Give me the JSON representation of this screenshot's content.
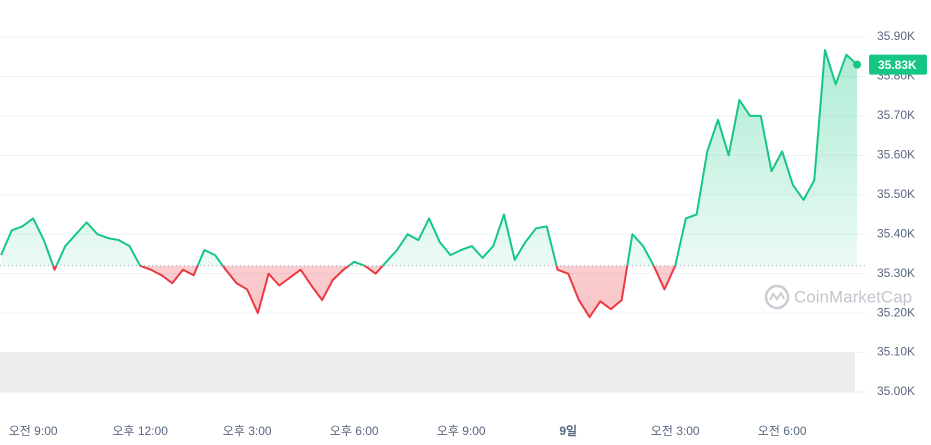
{
  "chart_data": {
    "type": "line",
    "x": [
      8.1,
      8.4,
      8.7,
      9.0,
      9.3,
      9.6,
      9.9,
      10.2,
      10.5,
      10.8,
      11.1,
      11.4,
      11.7,
      12.0,
      12.3,
      12.6,
      12.9,
      13.2,
      13.5,
      13.8,
      14.1,
      14.4,
      14.7,
      15.0,
      15.3,
      15.6,
      15.9,
      16.2,
      16.5,
      16.8,
      17.1,
      17.4,
      17.7,
      18.0,
      18.3,
      18.6,
      18.9,
      19.2,
      19.5,
      19.8,
      20.1,
      20.4,
      20.7,
      21.0,
      21.3,
      21.6,
      21.9,
      22.2,
      22.5,
      22.8,
      23.1,
      23.4,
      23.7,
      24.0,
      24.3,
      24.6,
      24.9,
      25.2,
      25.5,
      25.8,
      26.1,
      26.4,
      26.7,
      27.0,
      27.3,
      27.6,
      27.9,
      28.2,
      28.5,
      28.8,
      29.1,
      29.4,
      29.7,
      30.0,
      30.3,
      30.6,
      30.9,
      31.2,
      31.5,
      31.8,
      32.1
    ],
    "values": [
      35347,
      35410,
      35420,
      35440,
      35385,
      35310,
      35370,
      35400,
      35430,
      35400,
      35390,
      35385,
      35370,
      35320,
      35310,
      35296,
      35276,
      35310,
      35296,
      35360,
      35347,
      35310,
      35276,
      35260,
      35200,
      35300,
      35270,
      35290,
      35310,
      35270,
      35233,
      35284,
      35310,
      35330,
      35320,
      35300,
      35330,
      35360,
      35400,
      35385,
      35440,
      35380,
      35347,
      35360,
      35370,
      35340,
      35370,
      35450,
      35335,
      35380,
      35415,
      35420,
      35310,
      35300,
      35233,
      35190,
      35230,
      35210,
      35233,
      35400,
      35370,
      35320,
      35260,
      35320,
      35440,
      35450,
      35610,
      35690,
      35600,
      35740,
      35700,
      35700,
      35560,
      35610,
      35525,
      35487,
      35537,
      35867,
      35780,
      35855,
      35830
    ],
    "baseline": 35320,
    "up_color": "#16c784",
    "down_color": "#ea3943",
    "xlim": [
      8.07,
      32.35
    ],
    "xticks": [
      {
        "value": 9,
        "label": "오전 9:00"
      },
      {
        "value": 12,
        "label": "오후 12:00"
      },
      {
        "value": 15,
        "label": "오후 3:00"
      },
      {
        "value": 18,
        "label": "오후 6:00"
      },
      {
        "value": 21,
        "label": "오후 9:00"
      },
      {
        "value": 24,
        "label": "9일"
      },
      {
        "value": 27,
        "label": "오전 3:00"
      },
      {
        "value": 30,
        "label": "오전 6:00"
      }
    ],
    "ylim": [
      35000,
      35900
    ],
    "yticks": [
      {
        "value": 35000,
        "label": "35.00K"
      },
      {
        "value": 35100,
        "label": "35.10K"
      },
      {
        "value": 35200,
        "label": "35.20K"
      },
      {
        "value": 35300,
        "label": "35.30K"
      },
      {
        "value": 35400,
        "label": "35.40K"
      },
      {
        "value": 35500,
        "label": "35.50K"
      },
      {
        "value": 35600,
        "label": "35.60K"
      },
      {
        "value": 35700,
        "label": "35.70K"
      },
      {
        "value": 35800,
        "label": "35.80K"
      },
      {
        "value": 35900,
        "label": "35.90K"
      }
    ],
    "grid": true,
    "last_label": {
      "value": 35830,
      "label": "35.83K"
    },
    "watermark": "CoinMarketCap"
  }
}
